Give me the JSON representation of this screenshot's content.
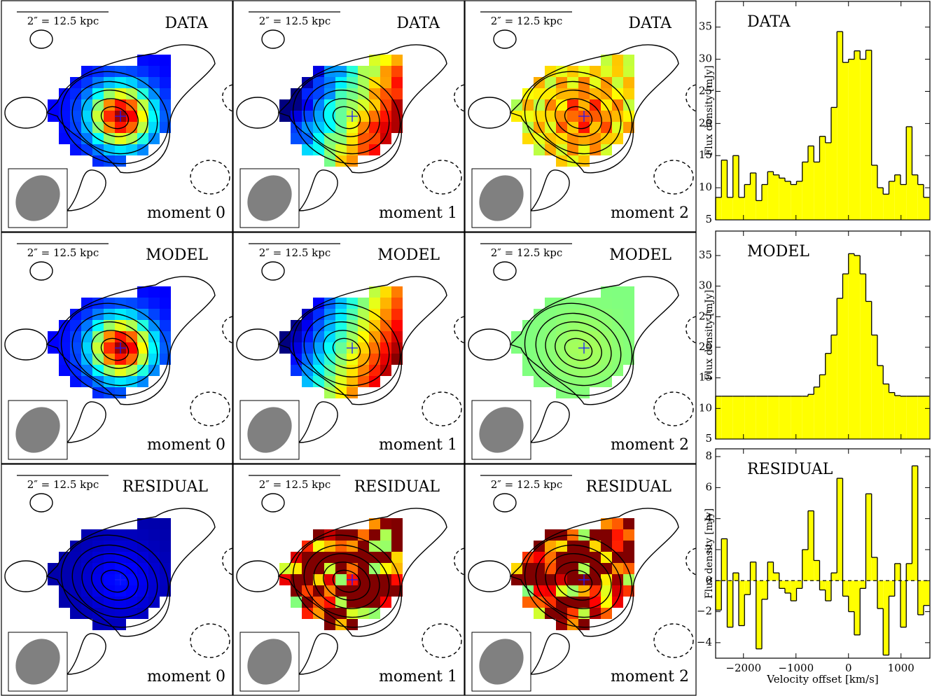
{
  "maps": {
    "scale_bar": "2″ = 12.5 kpc",
    "rows": [
      "DATA",
      "MODEL",
      "RESIDUAL"
    ],
    "columns": [
      "moment 0",
      "moment 1",
      "moment 2"
    ]
  },
  "chart_data": [
    {
      "type": "histogram",
      "title": "DATA",
      "y_label": "Flux density [mJy]",
      "color": "#ffff00",
      "bins": [
        -2530,
        -2420,
        -2310,
        -2200,
        -2090,
        -1980,
        -1870,
        -1760,
        -1650,
        -1540,
        -1430,
        -1320,
        -1210,
        -1100,
        -990,
        -880,
        -770,
        -660,
        -550,
        -440,
        -330,
        -220,
        -110,
        0,
        110,
        220,
        330,
        440,
        550,
        660,
        770,
        880,
        990,
        1100,
        1210,
        1320,
        1430,
        1540
      ],
      "values": [
        8.5,
        14.3,
        8.5,
        15,
        8.5,
        10.5,
        12.3,
        8,
        10.5,
        12.5,
        12,
        11.5,
        11,
        10.5,
        11,
        14,
        16.5,
        14,
        18,
        17,
        22.5,
        34.3,
        29.5,
        30,
        31.3,
        30,
        31.4,
        13.5,
        10,
        9,
        11,
        12,
        10.5,
        19.5,
        12,
        10.5,
        8.5
      ],
      "xlim": [
        -2530,
        1550
      ],
      "ylim": [
        5,
        39
      ],
      "xticks": [
        -2000,
        -1000,
        0,
        1000
      ],
      "yticks": [
        5,
        10,
        15,
        20,
        25,
        30,
        35
      ]
    },
    {
      "type": "histogram",
      "title": "MODEL",
      "y_label": "Flux density [mJy]",
      "color": "#ffff00",
      "bins": [
        -2530,
        -2420,
        -2310,
        -2200,
        -2090,
        -1980,
        -1870,
        -1760,
        -1650,
        -1540,
        -1430,
        -1320,
        -1210,
        -1100,
        -990,
        -880,
        -770,
        -660,
        -550,
        -440,
        -330,
        -220,
        -110,
        0,
        110,
        220,
        330,
        440,
        550,
        660,
        770,
        880,
        990,
        1100,
        1210,
        1320,
        1430,
        1540
      ],
      "values": [
        12,
        12,
        12,
        12,
        12,
        12,
        12,
        12,
        12,
        12,
        12,
        12,
        12,
        12,
        12,
        12,
        12.3,
        13.5,
        15.5,
        19,
        22,
        28,
        32,
        35.3,
        35,
        32,
        27.5,
        22,
        17,
        14,
        12.6,
        12.1,
        12,
        12,
        12,
        12,
        12
      ],
      "xlim": [
        -2530,
        1550
      ],
      "ylim": [
        5,
        39
      ],
      "xticks": [
        -2000,
        -1000,
        0,
        1000
      ],
      "yticks": [
        5,
        10,
        15,
        20,
        25,
        30,
        35
      ]
    },
    {
      "type": "histogram",
      "title": "RESIDUAL",
      "y_label": "Flux density [mJy]",
      "x_label": "Velocity offset [km/s]",
      "color": "#ffff00",
      "bins": [
        -2530,
        -2420,
        -2310,
        -2200,
        -2090,
        -1980,
        -1870,
        -1760,
        -1650,
        -1540,
        -1430,
        -1320,
        -1210,
        -1100,
        -990,
        -880,
        -770,
        -660,
        -550,
        -440,
        -330,
        -220,
        -110,
        0,
        110,
        220,
        330,
        440,
        550,
        660,
        770,
        880,
        990,
        1100,
        1210,
        1320,
        1430,
        1540
      ],
      "values": [
        -1.9,
        2.7,
        -3,
        0.5,
        -2.9,
        -0.9,
        1.2,
        -4.4,
        -1.2,
        1.2,
        0.5,
        -0.5,
        -0.8,
        -1.3,
        -0.5,
        2,
        4.5,
        1.3,
        -0.6,
        -1.3,
        0.5,
        6.6,
        -1,
        -2,
        -3.5,
        -0.5,
        5.6,
        1.5,
        -1.8,
        -4.8,
        -1,
        1.1,
        -3,
        1.1,
        7.4,
        -2.2,
        -1.6
      ],
      "reference_line": 0,
      "xlim": [
        -2530,
        1550
      ],
      "ylim": [
        -5,
        8.5
      ],
      "xticks": [
        {
          "value": -2000,
          "label": "−2000"
        },
        {
          "value": -1000,
          "label": "−1000"
        },
        0,
        1000
      ],
      "yticks": [
        {
          "value": -4,
          "label": "−4"
        },
        {
          "value": -2,
          "label": "−2"
        },
        0,
        2,
        4,
        6,
        8
      ]
    }
  ]
}
